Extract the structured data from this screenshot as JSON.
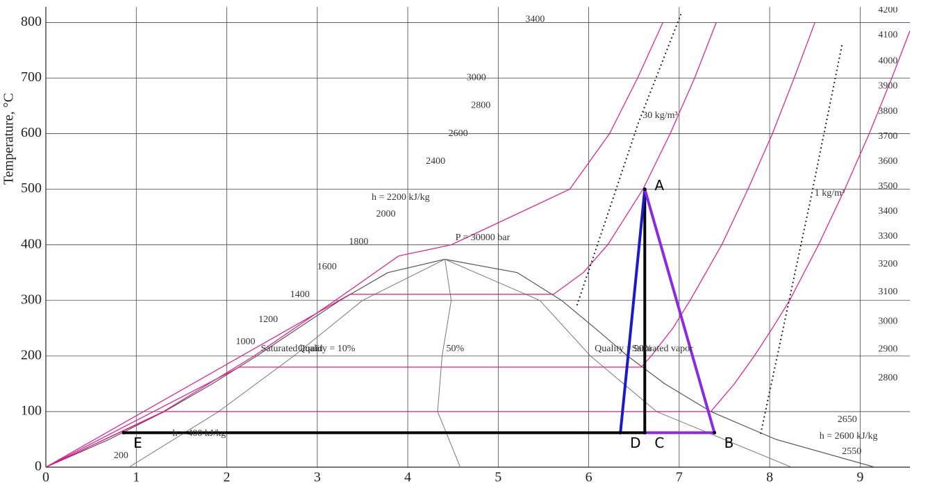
{
  "chart_data": {
    "type": "line",
    "ylabel": "Temperature, °C",
    "xlim": [
      0,
      9.55
    ],
    "ylim": [
      0,
      828
    ],
    "xticks": [
      0,
      1,
      2,
      3,
      4,
      5,
      6,
      7,
      8,
      9
    ],
    "yticks": [
      0,
      100,
      200,
      300,
      400,
      500,
      600,
      700,
      800
    ],
    "grid": true,
    "series": [
      {
        "name": "Saturated liquid",
        "color": "#555555",
        "width": 1.2,
        "x": [
          0,
          0.7,
          1.31,
          1.84,
          2.33,
          2.79,
          3.25,
          3.78,
          4.41
        ],
        "values": [
          0,
          50,
          100,
          150,
          200,
          250,
          300,
          350,
          374
        ]
      },
      {
        "name": "Saturated vapor",
        "color": "#555555",
        "width": 1.2,
        "x": [
          4.41,
          5.21,
          5.7,
          6.07,
          6.43,
          6.84,
          7.35,
          8.07,
          9.16
        ],
        "values": [
          374,
          350,
          300,
          250,
          200,
          150,
          100,
          50,
          0
        ]
      },
      {
        "name": "Quality = 10%",
        "color": "#777777",
        "width": 1,
        "x": [
          0.92,
          1.91,
          2.74,
          3.5,
          4.41
        ],
        "values": [
          0,
          100,
          200,
          300,
          374
        ]
      },
      {
        "name": "50%",
        "color": "#777777",
        "width": 1,
        "x": [
          4.58,
          4.33,
          4.38,
          4.48,
          4.41
        ],
        "values": [
          0,
          100,
          200,
          300,
          374
        ]
      },
      {
        "name": "Quality = 90%",
        "color": "#777777",
        "width": 1,
        "x": [
          8.24,
          6.75,
          6.02,
          5.46,
          4.41
        ],
        "values": [
          0,
          100,
          200,
          300,
          374
        ]
      },
      {
        "color": "#e0198a",
        "width": 1.2,
        "x": [
          0,
          1.31,
          7.35,
          7.61,
          7.83,
          8.03,
          8.22,
          8.54,
          8.83,
          9.1,
          9.35,
          9.55
        ],
        "values": [
          0,
          100,
          100,
          150,
          200,
          250,
          300,
          400,
          500,
          600,
          700,
          785
        ]
      },
      {
        "color": "#e0198a",
        "width": 1.2,
        "x": [
          0,
          2.14,
          6.58,
          6.69,
          6.93,
          7.12,
          7.47,
          7.76,
          8.03,
          8.27,
          8.5
        ],
        "values": [
          0,
          180,
          180,
          200,
          250,
          300,
          400,
          500,
          600,
          700,
          800
        ]
      },
      {
        "color": "#e0198a",
        "width": 1.2,
        "x": [
          0,
          3.36,
          5.61,
          5.94,
          6.21,
          6.6,
          6.9,
          7.17,
          7.41
        ],
        "values": [
          0,
          311,
          311,
          350,
          400,
          500,
          600,
          700,
          800
        ]
      },
      {
        "name": "P = 30000 bar",
        "color": "#e0198a",
        "width": 1.2,
        "x": [
          0,
          1.3,
          2.3,
          3.2,
          3.9,
          4.48,
          5.79,
          6.23,
          6.54,
          6.82
        ],
        "values": [
          0,
          100,
          200,
          300,
          380,
          400,
          500,
          600,
          700,
          800
        ]
      },
      {
        "name": "30 kg/m³",
        "color": "#222222",
        "width": 2,
        "dash": "2 4",
        "x": [
          5.87,
          6.2,
          6.55,
          7.02
        ],
        "values": [
          291,
          450,
          620,
          815
        ]
      },
      {
        "name": "1 kg/m³",
        "color": "#222222",
        "width": 2,
        "dash": "2 4",
        "x": [
          7.9,
          8.15,
          8.45,
          8.8
        ],
        "values": [
          60,
          250,
          480,
          760
        ]
      },
      {
        "color": "#000000",
        "width": 4,
        "x": [
          0.86,
          6.62
        ],
        "values": [
          62,
          62
        ]
      },
      {
        "color": "#000000",
        "width": 4,
        "x": [
          6.62,
          6.62
        ],
        "values": [
          62,
          500
        ]
      },
      {
        "color": "#1a1acc",
        "width": 4,
        "x": [
          6.35,
          6.62
        ],
        "values": [
          62,
          500
        ]
      },
      {
        "color": "#8a2be2",
        "width": 4,
        "x": [
          6.62,
          7.39,
          6.62
        ],
        "values": [
          500,
          62,
          62
        ]
      }
    ],
    "points": [
      {
        "label": "A",
        "x": 6.62,
        "y": 500
      },
      {
        "label": "B",
        "x": 7.39,
        "y": 62
      },
      {
        "label": "C",
        "x": 6.62,
        "y": 62
      },
      {
        "label": "D",
        "x": 6.35,
        "y": 62
      },
      {
        "label": "E",
        "x": 0.86,
        "y": 62
      }
    ],
    "annotations": [
      {
        "text": "h = 2200 kJ/kg",
        "x": 3.6,
        "y": 485
      },
      {
        "text": "2000",
        "x": 3.65,
        "y": 455
      },
      {
        "text": "1800",
        "x": 3.35,
        "y": 405
      },
      {
        "text": "1600",
        "x": 3.0,
        "y": 360
      },
      {
        "text": "1400",
        "x": 2.7,
        "y": 310
      },
      {
        "text": "1200",
        "x": 2.35,
        "y": 265
      },
      {
        "text": "1000",
        "x": 2.1,
        "y": 225
      },
      {
        "text": "2400",
        "x": 4.2,
        "y": 550
      },
      {
        "text": "2600",
        "x": 4.45,
        "y": 600
      },
      {
        "text": "2800",
        "x": 4.7,
        "y": 650
      },
      {
        "text": "3000",
        "x": 4.65,
        "y": 700
      },
      {
        "text": "3400",
        "x": 5.3,
        "y": 805
      },
      {
        "text": "h = 400 kJ/kg",
        "x": 1.4,
        "y": 60
      },
      {
        "text": "200",
        "x": 0.75,
        "y": 20
      },
      {
        "text": "h = 2600 kJ/kg",
        "x": 8.55,
        "y": 55
      },
      {
        "text": "2650",
        "x": 8.75,
        "y": 85
      },
      {
        "text": "2550",
        "x": 8.8,
        "y": 28
      },
      {
        "text": "4200",
        "x": 9.2,
        "y": 822
      },
      {
        "text": "4100",
        "x": 9.2,
        "y": 777
      },
      {
        "text": "4000",
        "x": 9.2,
        "y": 730
      },
      {
        "text": "3900",
        "x": 9.2,
        "y": 685
      },
      {
        "text": "3800",
        "x": 9.2,
        "y": 640
      },
      {
        "text": "3700",
        "x": 9.2,
        "y": 595
      },
      {
        "text": "3600",
        "x": 9.2,
        "y": 550
      },
      {
        "text": "3500",
        "x": 9.2,
        "y": 505
      },
      {
        "text": "3400",
        "x": 9.2,
        "y": 460
      },
      {
        "text": "3300",
        "x": 9.2,
        "y": 415
      },
      {
        "text": "3200",
        "x": 9.2,
        "y": 365
      },
      {
        "text": "3100",
        "x": 9.2,
        "y": 315
      },
      {
        "text": "3000",
        "x": 9.2,
        "y": 262
      },
      {
        "text": "2900",
        "x": 9.2,
        "y": 212
      },
      {
        "text": "2800",
        "x": 9.2,
        "y": 160
      }
    ]
  }
}
